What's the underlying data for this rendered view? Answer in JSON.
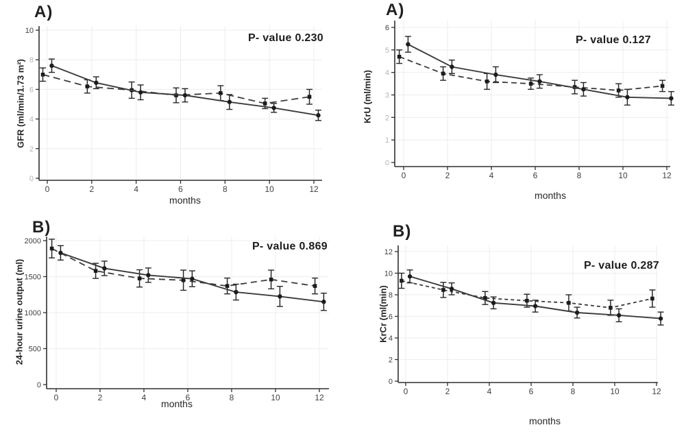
{
  "figure": {
    "background": "#ffffff"
  },
  "colors": {
    "axis": "#2f2f2f",
    "grid": "#eeecec",
    "line": "#3b3b3b",
    "marker": "#1c1c1c",
    "error_bar": "#262626",
    "tick_label_dark": "#3f3f3f",
    "tick_label_faint": "#b4b4b4",
    "text": "#1d1d1d"
  },
  "chart_data": [
    {
      "id": "gfr",
      "type": "line",
      "panel_label": "A)",
      "p_label": "P- value 0.230",
      "ylabel": "GFR (ml/min/1.73 m²)",
      "xlabel": "months",
      "xlim": [
        -0.6,
        12.6
      ],
      "ylim": [
        0,
        10
      ],
      "x_ticks": [
        0,
        2,
        4,
        6,
        8,
        10,
        12
      ],
      "y_ticks": [
        0,
        2,
        4,
        6,
        8,
        10
      ],
      "y_ticks_faint": true,
      "y_tick_strong": 10,
      "legend": "none",
      "series": [
        {
          "name": "dashed-group",
          "line_style": "dashed",
          "marker": "square",
          "x": [
            -0.2,
            1.8,
            3.8,
            5.8,
            7.8,
            9.8,
            11.8
          ],
          "y": [
            7.0,
            6.2,
            5.95,
            5.6,
            5.75,
            5.05,
            5.5
          ],
          "err": [
            0.45,
            0.45,
            0.55,
            0.5,
            0.5,
            0.35,
            0.5
          ]
        },
        {
          "name": "solid-group",
          "line_style": "solid",
          "marker": "circle",
          "x": [
            0.2,
            2.2,
            4.2,
            6.2,
            8.2,
            10.2,
            12.2
          ],
          "y": [
            7.6,
            6.45,
            5.8,
            5.6,
            5.15,
            4.75,
            4.25
          ],
          "err": [
            0.45,
            0.4,
            0.5,
            0.45,
            0.5,
            0.3,
            0.35
          ]
        }
      ]
    },
    {
      "id": "kru",
      "type": "line",
      "panel_label": "A)",
      "p_label": "P- value 0.127",
      "ylabel": "KrU (ml/min)",
      "xlabel": "months",
      "xlim": [
        -0.6,
        12.6
      ],
      "ylim": [
        0,
        6
      ],
      "x_ticks": [
        0,
        2,
        4,
        6,
        8,
        10,
        12
      ],
      "y_ticks": [
        0,
        1,
        2,
        3,
        4,
        5,
        6
      ],
      "y_ticks_faint": true,
      "y_tick_strong": 6,
      "legend": "none",
      "series": [
        {
          "name": "dashed-group",
          "line_style": "dashed",
          "marker": "square",
          "x": [
            -0.2,
            1.8,
            3.8,
            5.8,
            7.8,
            9.8,
            11.8
          ],
          "y": [
            4.7,
            3.95,
            3.6,
            3.5,
            3.35,
            3.2,
            3.4
          ],
          "err": [
            0.3,
            0.3,
            0.35,
            0.25,
            0.3,
            0.3,
            0.25
          ]
        },
        {
          "name": "solid-group",
          "line_style": "solid",
          "marker": "circle",
          "x": [
            0.2,
            2.2,
            4.2,
            6.2,
            8.2,
            10.2,
            12.2
          ],
          "y": [
            5.25,
            4.25,
            3.9,
            3.6,
            3.25,
            2.9,
            2.85
          ],
          "err": [
            0.35,
            0.3,
            0.35,
            0.3,
            0.3,
            0.35,
            0.3
          ]
        }
      ]
    },
    {
      "id": "urine",
      "type": "line",
      "panel_label": "B)",
      "p_label": "P- value 0.869",
      "ylabel": "24-hour urine output (ml)",
      "xlabel": "months",
      "xlim": [
        -0.6,
        12.6
      ],
      "ylim": [
        0,
        2000
      ],
      "x_ticks": [
        0,
        2,
        4,
        6,
        8,
        10,
        12
      ],
      "y_ticks": [
        0,
        500,
        1000,
        1500,
        2000
      ],
      "y_ticks_faint": false,
      "legend": "none",
      "series": [
        {
          "name": "dashed-group",
          "line_style": "dashed",
          "marker": "square",
          "x": [
            -0.2,
            1.8,
            3.8,
            5.8,
            7.8,
            9.8,
            11.8
          ],
          "y": [
            1890,
            1580,
            1475,
            1450,
            1370,
            1460,
            1370
          ],
          "err": [
            130,
            105,
            120,
            140,
            110,
            130,
            110
          ]
        },
        {
          "name": "solid-group",
          "line_style": "solid",
          "marker": "circle",
          "x": [
            0.2,
            2.2,
            4.2,
            6.2,
            8.2,
            10.2,
            12.2
          ],
          "y": [
            1830,
            1615,
            1520,
            1470,
            1285,
            1225,
            1150
          ],
          "err": [
            100,
            100,
            100,
            110,
            110,
            140,
            120
          ]
        }
      ]
    },
    {
      "id": "krcr",
      "type": "line",
      "panel_label": "B)",
      "p_label": "P- value 0.287",
      "ylabel": "KrCr (ml(min)",
      "xlabel": "months",
      "xlim": [
        -0.6,
        12.6
      ],
      "ylim": [
        0,
        12
      ],
      "x_ticks": [
        0,
        2,
        4,
        6,
        8,
        10,
        12
      ],
      "y_ticks": [
        0,
        2,
        4,
        6,
        8,
        10,
        12
      ],
      "y_ticks_faint": false,
      "legend": "none",
      "series": [
        {
          "name": "dashed-group",
          "line_style": "dashed",
          "marker": "square",
          "x": [
            -0.2,
            1.8,
            3.8,
            5.8,
            7.8,
            9.8,
            11.8
          ],
          "y": [
            9.3,
            8.45,
            7.7,
            7.45,
            7.25,
            6.8,
            7.65
          ],
          "err": [
            0.7,
            0.7,
            0.6,
            0.6,
            0.75,
            0.7,
            0.8
          ]
        },
        {
          "name": "solid-group",
          "line_style": "solid",
          "marker": "circle",
          "x": [
            0.2,
            2.2,
            4.2,
            6.2,
            8.2,
            10.2,
            12.2
          ],
          "y": [
            9.7,
            8.55,
            7.25,
            6.95,
            6.35,
            6.1,
            5.8
          ],
          "err": [
            0.6,
            0.55,
            0.55,
            0.55,
            0.5,
            0.6,
            0.6
          ]
        }
      ]
    }
  ]
}
